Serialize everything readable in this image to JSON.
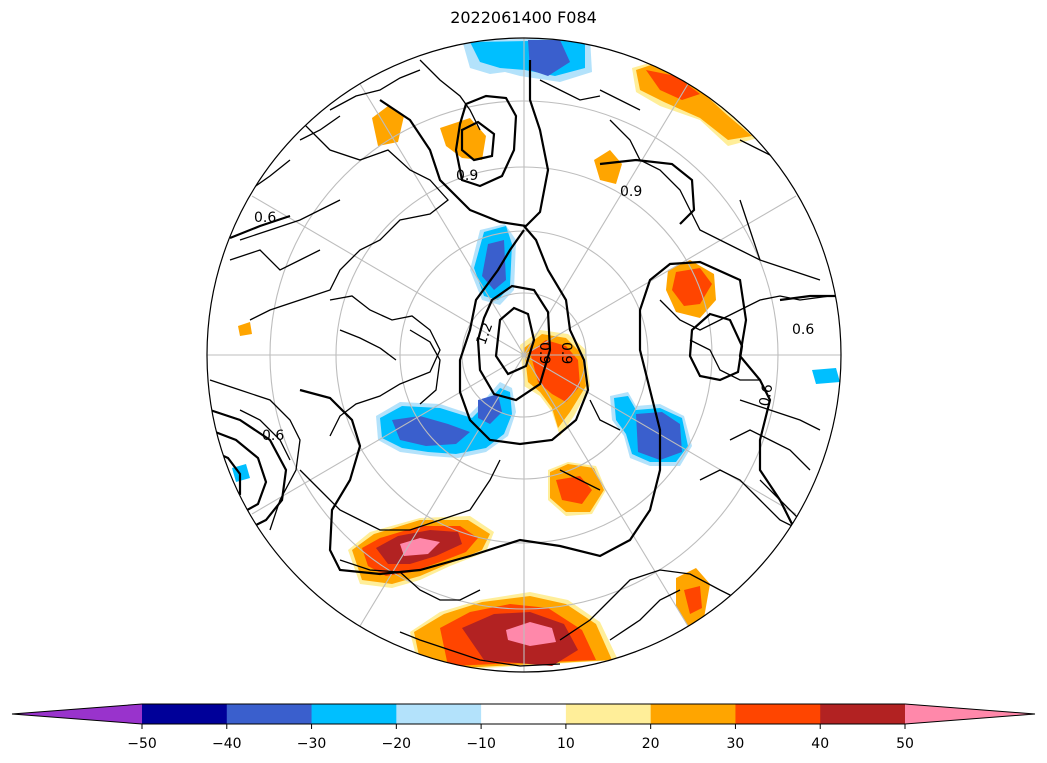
{
  "title": "2022061400 F084",
  "map": {
    "projection": "north-polar-stereographic",
    "contour_labels": [
      "0.9",
      "1.2",
      "0.9",
      "0.9",
      "0.9",
      "0.6",
      "0.6",
      "0.6",
      "0.6"
    ]
  },
  "colorbar": {
    "extend": "both",
    "bins": [
      {
        "from": null,
        "to": -50,
        "color": "#9933cc"
      },
      {
        "from": -50,
        "to": -40,
        "color": "#000099"
      },
      {
        "from": -40,
        "to": -30,
        "color": "#3a5fcd"
      },
      {
        "from": -30,
        "to": -20,
        "color": "#00bfff"
      },
      {
        "from": -20,
        "to": -10,
        "color": "#b3e2fb"
      },
      {
        "from": -10,
        "to": 10,
        "color": "#ffffff"
      },
      {
        "from": 10,
        "to": 20,
        "color": "#ffee99"
      },
      {
        "from": 20,
        "to": 30,
        "color": "#ffa500"
      },
      {
        "from": 30,
        "to": 40,
        "color": "#ff4500"
      },
      {
        "from": 40,
        "to": 50,
        "color": "#b22222"
      },
      {
        "from": 50,
        "to": null,
        "color": "#ff88aa"
      }
    ],
    "tick_labels": [
      "−50",
      "−40",
      "−30",
      "−20",
      "−10",
      "10",
      "20",
      "30",
      "40",
      "50"
    ]
  }
}
